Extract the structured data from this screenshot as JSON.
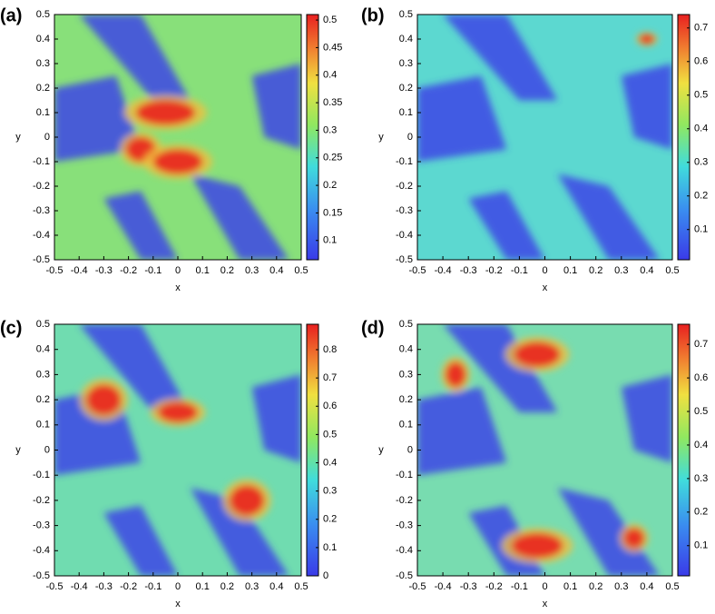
{
  "chart_data": [
    {
      "type": "heatmap",
      "label": "(a)",
      "xlabel": "x",
      "ylabel": "y",
      "xlim": [
        -0.5,
        0.5
      ],
      "ylim": [
        -0.5,
        0.5
      ],
      "xticks": [
        -0.5,
        -0.4,
        -0.3,
        -0.2,
        -0.1,
        0,
        0.1,
        0.2,
        0.3,
        0.4,
        0.5
      ],
      "yticks": [
        -0.5,
        -0.4,
        -0.3,
        -0.2,
        -0.1,
        0,
        0.1,
        0.2,
        0.3,
        0.4,
        0.5
      ],
      "clim": [
        0.065,
        0.51
      ],
      "cticks": [
        0.1,
        0.15,
        0.2,
        0.25,
        0.3,
        0.35,
        0.4,
        0.45,
        0.5
      ]
    },
    {
      "type": "heatmap",
      "label": "(b)",
      "xlabel": "x",
      "ylabel": "y",
      "xlim": [
        -0.5,
        0.5
      ],
      "ylim": [
        -0.5,
        0.5
      ],
      "xticks": [
        -0.5,
        -0.4,
        -0.3,
        -0.2,
        -0.1,
        0,
        0.1,
        0.2,
        0.3,
        0.4,
        0.5
      ],
      "yticks": [
        -0.5,
        -0.4,
        -0.3,
        -0.2,
        -0.1,
        0,
        0.1,
        0.2,
        0.3,
        0.4,
        0.5
      ],
      "clim": [
        0.01,
        0.74
      ],
      "cticks": [
        0.1,
        0.2,
        0.3,
        0.4,
        0.5,
        0.6,
        0.7
      ]
    },
    {
      "type": "heatmap",
      "label": "(c)",
      "xlabel": "x",
      "ylabel": "y",
      "xlim": [
        -0.5,
        0.5
      ],
      "ylim": [
        -0.5,
        0.5
      ],
      "xticks": [
        -0.5,
        -0.4,
        -0.3,
        -0.2,
        -0.1,
        0,
        0.1,
        0.2,
        0.3,
        0.4,
        0.5
      ],
      "yticks": [
        -0.5,
        -0.4,
        -0.3,
        -0.2,
        -0.1,
        0,
        0.1,
        0.2,
        0.3,
        0.4,
        0.5
      ],
      "clim": [
        0,
        0.89
      ],
      "cticks": [
        0,
        0.1,
        0.2,
        0.3,
        0.4,
        0.5,
        0.6,
        0.7,
        0.8
      ]
    },
    {
      "type": "heatmap",
      "label": "(d)",
      "xlabel": "x",
      "ylabel": "y",
      "xlim": [
        -0.5,
        0.5
      ],
      "ylim": [
        -0.5,
        0.5
      ],
      "xticks": [
        -0.5,
        -0.4,
        -0.3,
        -0.2,
        -0.1,
        0,
        0.1,
        0.2,
        0.3,
        0.4,
        0.5
      ],
      "yticks": [
        -0.5,
        -0.4,
        -0.3,
        -0.2,
        -0.1,
        0,
        0.1,
        0.2,
        0.3,
        0.4,
        0.5
      ],
      "clim": [
        0.01,
        0.76
      ],
      "cticks": [
        0.1,
        0.2,
        0.3,
        0.4,
        0.5,
        0.6,
        0.7
      ]
    }
  ]
}
